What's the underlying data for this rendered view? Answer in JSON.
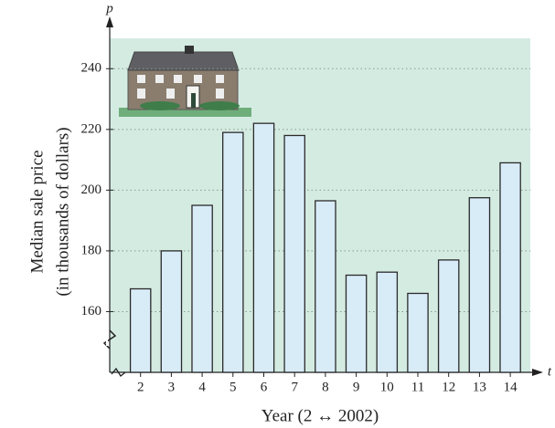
{
  "chart_data": {
    "type": "bar",
    "x": [
      2,
      3,
      4,
      5,
      6,
      7,
      8,
      9,
      10,
      11,
      12,
      13,
      14
    ],
    "values": [
      167.5,
      180,
      195,
      219,
      222,
      218,
      196.5,
      172,
      173,
      166,
      177,
      197.5,
      209
    ],
    "color": "#d8ecf8",
    "xlim": [
      1,
      14.65
    ],
    "xticks": [
      2,
      3,
      4,
      5,
      6,
      7,
      8,
      9,
      10,
      11,
      12,
      13,
      14
    ],
    "ylim": [
      140,
      250
    ],
    "yticks": [
      160,
      180,
      200,
      220,
      240
    ],
    "grid": true,
    "x_axis_label": "Year (2 ↔ 2002)",
    "y_axis_label": [
      "Median sale price",
      "(in thousands of dollars)"
    ],
    "x_variable": "t",
    "y_variable": "p"
  }
}
